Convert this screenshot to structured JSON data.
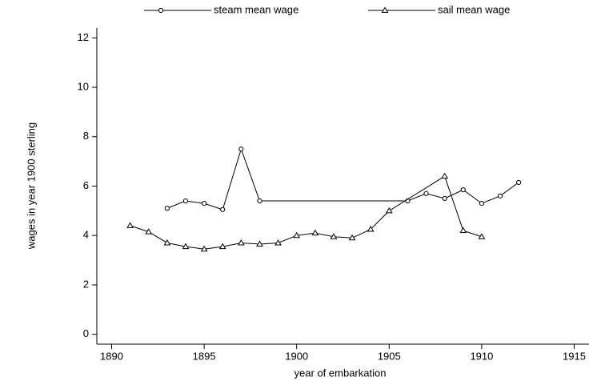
{
  "chart_data": {
    "type": "line",
    "xlabel": "year of embarkation",
    "ylabel": "wages in year 1900 sterling",
    "xlim": [
      1889.2,
      1915.8
    ],
    "xticks": [
      1890,
      1895,
      1900,
      1905,
      1910,
      1915
    ],
    "ylim": [
      -0.4,
      12.4
    ],
    "yticks": [
      0,
      2,
      4,
      6,
      8,
      10,
      12
    ],
    "series": [
      {
        "name": "steam mean wage",
        "color": "#000000",
        "marker": "circle",
        "x": [
          1893,
          1894,
          1895,
          1896,
          1897,
          1898,
          1906,
          1907,
          1908,
          1909,
          1910,
          1911,
          1912
        ],
        "values": [
          5.1,
          5.4,
          5.3,
          5.05,
          7.5,
          5.4,
          5.4,
          5.7,
          5.5,
          5.85,
          5.3,
          5.6,
          6.15
        ]
      },
      {
        "name": "sail mean wage",
        "color": "#000000",
        "marker": "triangle",
        "x": [
          1891,
          1892,
          1893,
          1894,
          1895,
          1896,
          1897,
          1898,
          1899,
          1900,
          1901,
          1902,
          1903,
          1904,
          1905,
          1908,
          1909,
          1910
        ],
        "values": [
          4.4,
          4.15,
          3.7,
          3.55,
          3.45,
          3.55,
          3.7,
          3.65,
          3.7,
          4.0,
          4.1,
          3.95,
          3.9,
          4.25,
          5.0,
          6.4,
          4.2,
          3.95
        ]
      }
    ]
  }
}
